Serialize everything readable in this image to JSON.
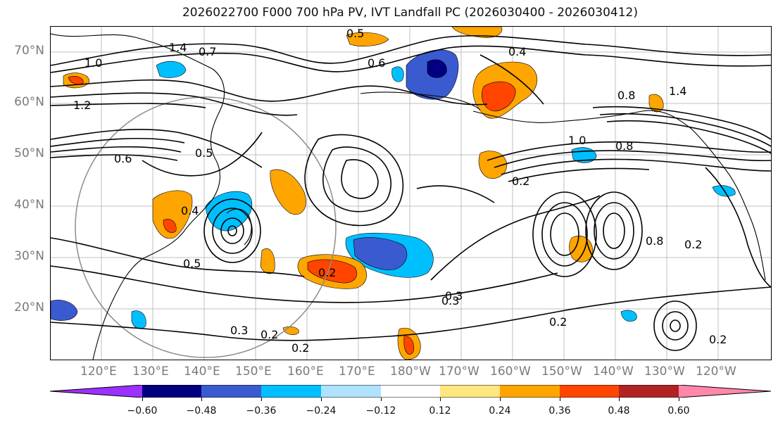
{
  "title": "2026022700 F000 700 hPa PV, IVT Landfall PC (2026030400 - 2026030412)",
  "lat_labels": [
    "70°N",
    "60°N",
    "50°N",
    "40°N",
    "30°N",
    "20°N"
  ],
  "lon_labels": [
    "120°E",
    "130°E",
    "140°E",
    "150°E",
    "160°E",
    "170°E",
    "180°W",
    "170°W",
    "160°W",
    "150°W",
    "140°W",
    "130°W",
    "120°W"
  ],
  "colorbar": {
    "colors": [
      "#9b30ff",
      "#000080",
      "#3a5bd0",
      "#00bfff",
      "#afe2ff",
      "#ffffff",
      "#ffe680",
      "#ffa500",
      "#ff4500",
      "#b22222",
      "#ff88aa"
    ],
    "ticks": [
      "−0.60",
      "−0.48",
      "−0.36",
      "−0.24",
      "−0.12",
      "0.12",
      "0.24",
      "0.36",
      "0.48",
      "0.60"
    ]
  },
  "contour_labels": [
    "1.0",
    "1.4",
    "0.7",
    "0.5",
    "0.6",
    "0.4",
    "0.8",
    "1.2",
    "0.5",
    "1.0",
    "0.2",
    "0.3",
    "0.2",
    "0.2",
    "0.4",
    "0.8",
    "0.6",
    "0.5",
    "1.4",
    "0.8",
    "0.2",
    "0.3",
    "0.2",
    "0.2",
    "0.3",
    "0.2"
  ]
}
